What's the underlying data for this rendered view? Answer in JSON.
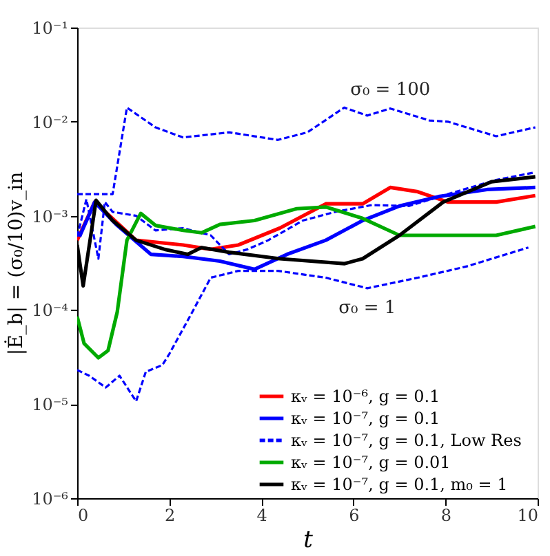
{
  "chart_data": {
    "type": "line",
    "xlabel": "t",
    "ylabel": "|Ė_b| = (σ₀/10)v_in",
    "log": "y",
    "grid": false,
    "legend": "bottom right",
    "marker": "none",
    "xlim": [
      0,
      10
    ],
    "xticks": [
      0,
      2,
      4,
      6,
      8,
      10
    ],
    "ylim": [
      1e-06,
      0.1
    ],
    "yticks": [
      {
        "value": 1e-06,
        "label": "10⁻⁶"
      },
      {
        "value": 1e-05,
        "label": "10⁻⁵"
      },
      {
        "value": 0.0001,
        "label": "10⁻⁴"
      },
      {
        "value": 0.001,
        "label": "10⁻³"
      },
      {
        "value": 0.01,
        "label": "10⁻²"
      },
      {
        "value": 0.1,
        "label": "10⁻¹"
      }
    ],
    "annotations": [
      {
        "text": "σ₀ = 100",
        "x": 6.8,
        "y": 0.0138
      },
      {
        "text": "σ₀ = 1",
        "x": 6.3,
        "y": 0.00017
      }
    ],
    "series": [
      {
        "name": "κᵥ = 10⁻⁶,  g = 0.1",
        "color": "#ff0000",
        "line_style": "solid",
        "x": [
          0,
          0.38,
          1.28,
          2.3,
          2.9,
          3.5,
          4.4,
          5.4,
          6.2,
          6.8,
          7.4,
          8.05,
          9.1,
          9.95
        ],
        "values": [
          0.00055,
          0.0014,
          0.00055,
          0.00049,
          0.00044,
          0.00049,
          0.00074,
          0.00134,
          0.00134,
          0.002,
          0.0018,
          0.0014,
          0.0014,
          0.00164
        ]
      },
      {
        "name": "κᵥ = 10⁻⁷,  g = 0.1",
        "color": "#0000ff",
        "line_style": "solid",
        "x": [
          0.05,
          0.38,
          0.87,
          1.6,
          2.3,
          3.1,
          3.85,
          4.56,
          5.4,
          6.2,
          7.0,
          7.85,
          8.9,
          9.95
        ],
        "values": [
          0.0006,
          0.0014,
          0.00079,
          0.00039,
          0.00037,
          0.00033,
          0.00027,
          0.00039,
          0.00055,
          0.00089,
          0.00127,
          0.0016,
          0.0019,
          0.002
        ]
      },
      {
        "name": "κᵥ = 10⁻⁷,  g = 0.1,  Low Res",
        "color": "#0000ff",
        "line_style": "dashed",
        "x": [
          0,
          0.2,
          0.46,
          0.6,
          0.77,
          1.28,
          1.7,
          2.3,
          2.9,
          3.3,
          3.7,
          4.15,
          4.9,
          5.6,
          6.4,
          7.2,
          8.05,
          9.1,
          9.95
        ],
        "values": [
          0.0006,
          0.0015,
          0.00035,
          0.0014,
          0.0011,
          0.001,
          0.0007,
          0.00074,
          0.00062,
          0.00039,
          0.00044,
          0.00055,
          0.00089,
          0.0011,
          0.0013,
          0.00127,
          0.0017,
          0.0024,
          0.0029
        ]
      },
      {
        "name": "κᵥ = 10⁻⁷,  g = 0.01",
        "color": "#00aa00",
        "line_style": "solid",
        "x": [
          0,
          0.15,
          0.46,
          0.67,
          0.87,
          1.08,
          1.38,
          1.7,
          2.3,
          2.7,
          3.1,
          3.85,
          4.77,
          5.4,
          6.2,
          7.0,
          8.05,
          9.1,
          9.95
        ],
        "values": [
          8.5e-05,
          4.4e-05,
          3.1e-05,
          3.7e-05,
          9.5e-05,
          0.00055,
          0.00106,
          0.00079,
          0.0007,
          0.00066,
          0.00081,
          0.00089,
          0.00119,
          0.00124,
          0.00094,
          0.00062,
          0.00062,
          0.00062,
          0.00077
        ]
      },
      {
        "name": "κᵥ = 10⁻⁷,  g = 0.1,  m₀ = 1",
        "color": "#000000",
        "line_style": "solid",
        "x": [
          0,
          0.13,
          0.41,
          0.77,
          1.28,
          1.9,
          2.4,
          2.7,
          3.3,
          4.4,
          5.8,
          6.2,
          7.0,
          7.95,
          9.0,
          9.95
        ],
        "values": [
          0.00049,
          0.00018,
          0.00146,
          0.00089,
          0.00055,
          0.00044,
          0.00039,
          0.00046,
          0.00041,
          0.00035,
          0.00031,
          0.00035,
          0.00062,
          0.0014,
          0.0023,
          0.0026
        ]
      },
      {
        "color": "#0000ff",
        "line_style": "dashed",
        "x": [
          0,
          0.36,
          0.77,
          1.08,
          1.7,
          2.3,
          3.3,
          4.36,
          5.0,
          5.8,
          6.3,
          6.8,
          7.65,
          8.05,
          9.1,
          9.95
        ],
        "values": [
          0.0017,
          0.0017,
          0.0017,
          0.0141,
          0.0087,
          0.0068,
          0.0077,
          0.0064,
          0.0077,
          0.0141,
          0.0116,
          0.0138,
          0.0103,
          0.01,
          0.007,
          0.0087
        ]
      },
      {
        "color": "#0000ff",
        "line_style": "dashed",
        "x": [
          0,
          0.26,
          0.62,
          0.92,
          1.28,
          1.49,
          1.85,
          2.0,
          2.5,
          2.9,
          3.5,
          4.36,
          5.4,
          6.3,
          7.4,
          8.46,
          9.8
        ],
        "values": [
          2.3e-05,
          2e-05,
          1.5e-05,
          2e-05,
          1.07e-05,
          2.2e-05,
          2.6e-05,
          3.4e-05,
          9.5e-05,
          0.00022,
          0.00026,
          0.00026,
          0.00022,
          0.00017,
          0.00022,
          0.00029,
          0.00046
        ]
      }
    ]
  }
}
